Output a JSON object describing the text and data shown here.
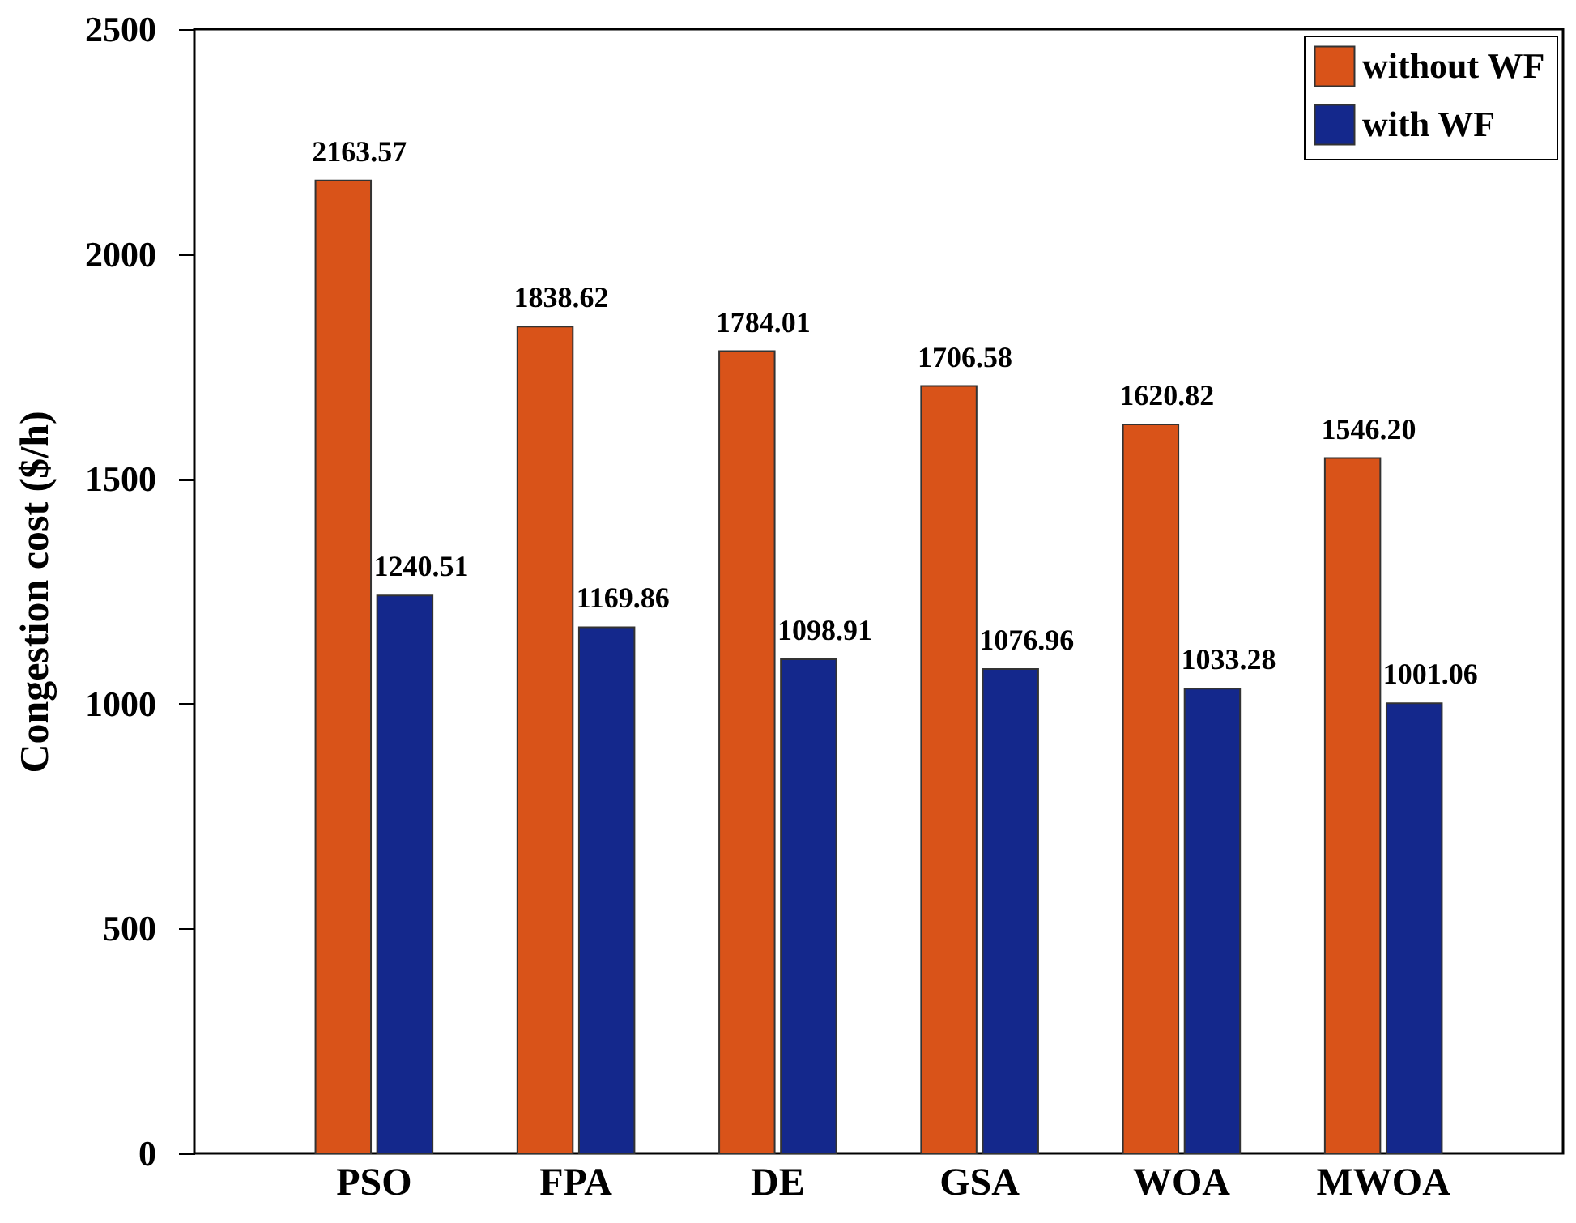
{
  "chart_data": {
    "type": "bar",
    "ylabel": "Congestion cost ($/h)",
    "categories": [
      "PSO",
      "FPA",
      "DE",
      "GSA",
      "WOA",
      "MWOA"
    ],
    "series": [
      {
        "name": "without WF",
        "color": "#d95319",
        "values": [
          2163.57,
          1838.62,
          1784.01,
          1706.58,
          1620.82,
          1546.2
        ],
        "value_labels": [
          "2163.57",
          "1838.62",
          "1784.01",
          "1706.58",
          "1620.82",
          "1546.20"
        ]
      },
      {
        "name": "with WF",
        "color": "#14288c",
        "values": [
          1240.51,
          1169.86,
          1098.91,
          1076.96,
          1033.28,
          1001.06
        ],
        "value_labels": [
          "1240.51",
          "1169.86",
          "1098.91",
          "1076.96",
          "1033.28",
          "1001.06"
        ]
      }
    ],
    "ylim": [
      0,
      2500
    ],
    "yticks": [
      0,
      500,
      1000,
      1500,
      2000,
      2500
    ],
    "legend": "top right",
    "grid": false
  }
}
